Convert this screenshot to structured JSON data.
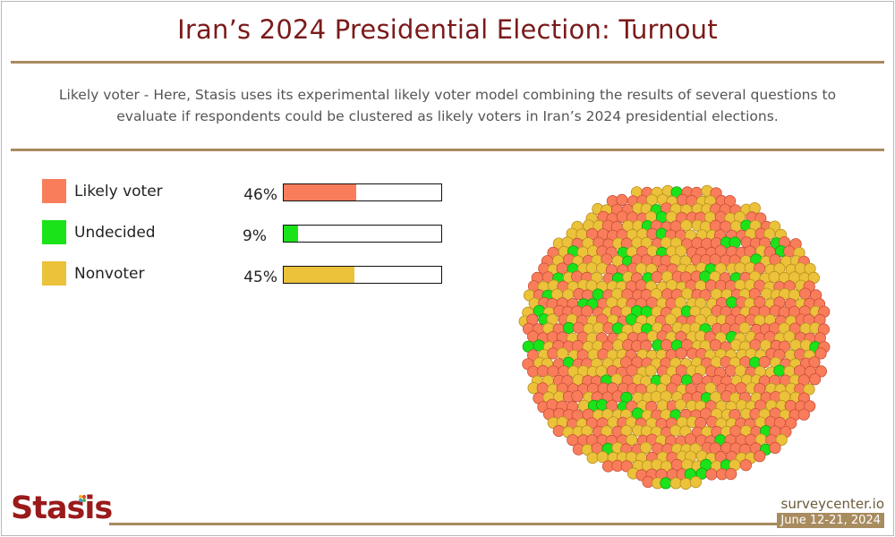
{
  "title": "Iran’s 2024 Presidential Election: Turnout",
  "subtitle": "Likely voter - Here, Stasis uses its experimental likely voter model combining the results of several questions to evaluate if respondents could be clustered as likely voters in Iran’s 2024 presidential elections.",
  "chart_data": {
    "type": "bar",
    "title": "Iran’s 2024 Presidential Election: Turnout",
    "categories": [
      "Likely voter",
      "Undecided",
      "Nonvoter"
    ],
    "values": [
      46,
      9,
      45
    ],
    "value_labels": [
      "46%",
      "9%",
      "45%"
    ],
    "colors": [
      "#fa7d5b",
      "#1ae31a",
      "#ebc23a"
    ],
    "ylim": [
      0,
      100
    ],
    "xlabel": "",
    "ylabel": ""
  },
  "footer": {
    "logo": "Stasis",
    "site": "surveycenter.io",
    "date": "June 12-21, 2024"
  }
}
